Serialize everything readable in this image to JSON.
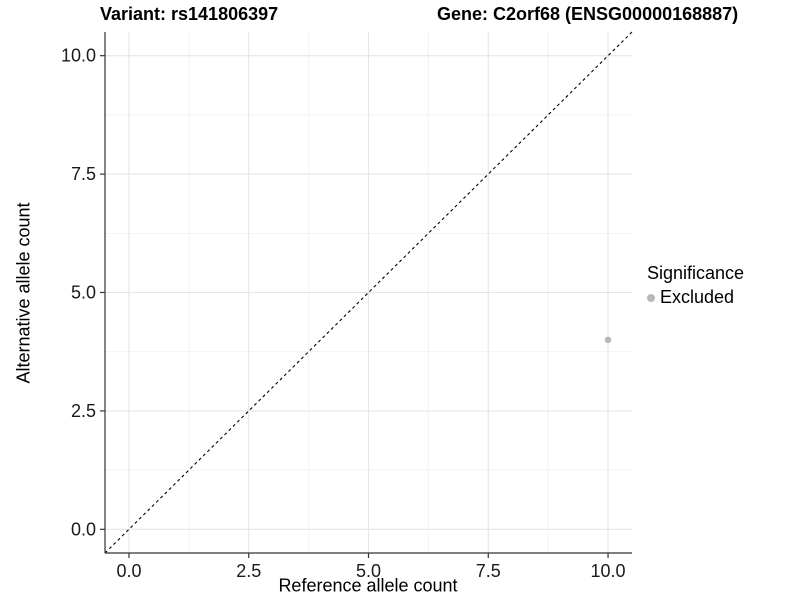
{
  "titles": {
    "left": "Variant: rs141806397",
    "right": "Gene: C2orf68 (ENSG00000168887)"
  },
  "chart_data": {
    "type": "scatter",
    "title_left": "Variant: rs141806397",
    "title_right": "Gene: C2orf68 (ENSG00000168887)",
    "xlabel": "Reference allele count",
    "ylabel": "Alternative allele count",
    "xlim": [
      -0.5,
      10.5
    ],
    "ylim": [
      -0.5,
      10.5
    ],
    "x_ticks": {
      "values": [
        0,
        2.5,
        5,
        7.5,
        10
      ],
      "labels": [
        "0.0",
        "2.5",
        "5.0",
        "7.5",
        "10.0"
      ]
    },
    "y_ticks": {
      "values": [
        0,
        2.5,
        5,
        7.5,
        10
      ],
      "labels": [
        "0.0",
        "2.5",
        "5.0",
        "7.5",
        "10.0"
      ]
    },
    "minor_ticks": [
      1.25,
      3.75,
      6.25,
      8.75
    ],
    "grid": "major+minor",
    "reference_line": {
      "kind": "identity y=x",
      "from": [
        -0.5,
        -0.5
      ],
      "to": [
        10.5,
        10.5
      ],
      "style": "dashed",
      "color": "#000000"
    },
    "series": [
      {
        "name": "Excluded",
        "marker": "circle",
        "color": "#b8b8b8",
        "points": [
          [
            10,
            4
          ]
        ]
      }
    ],
    "legend": {
      "title": "Significance",
      "position": "right",
      "items": [
        {
          "label": "Excluded",
          "color": "#b8b8b8"
        }
      ]
    }
  },
  "style": {
    "axis_color": "#333333",
    "tick_label_color": "#1a1a1a",
    "grid_major_color": "#e6e6e6",
    "grid_minor_color": "#f2f2f2",
    "background_color": "#ffffff"
  }
}
